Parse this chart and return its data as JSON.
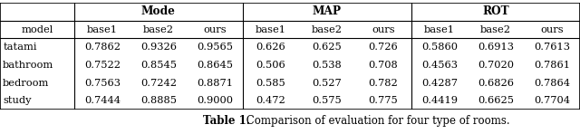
{
  "title_bold": "Table 1.",
  "title_normal": " Comparison of evaluation for four type of rooms.",
  "header_groups": [
    "Mode",
    "MAP",
    "ROT"
  ],
  "sub_headers": [
    "base1",
    "base2",
    "ours"
  ],
  "row_labels": [
    "tatami",
    "bathroom",
    "bedroom",
    "study"
  ],
  "data": {
    "tatami": {
      "Mode": [
        "0.7862",
        "0.9326",
        "0.9565"
      ],
      "MAP": [
        "0.626",
        "0.625",
        "0.726"
      ],
      "ROT": [
        "0.5860",
        "0.6913",
        "0.7613"
      ]
    },
    "bathroom": {
      "Mode": [
        "0.7522",
        "0.8545",
        "0.8645"
      ],
      "MAP": [
        "0.506",
        "0.538",
        "0.708"
      ],
      "ROT": [
        "0.4563",
        "0.7020",
        "0.7861"
      ]
    },
    "bedroom": {
      "Mode": [
        "0.7563",
        "0.7242",
        "0.8871"
      ],
      "MAP": [
        "0.585",
        "0.527",
        "0.782"
      ],
      "ROT": [
        "0.4287",
        "0.6826",
        "0.7864"
      ]
    },
    "study": {
      "Mode": [
        "0.7444",
        "0.8885",
        "0.9000"
      ],
      "MAP": [
        "0.472",
        "0.575",
        "0.775"
      ],
      "ROT": [
        "0.4419",
        "0.6625",
        "0.7704"
      ]
    }
  },
  "figsize": [
    6.4,
    1.48
  ],
  "dpi": 100,
  "background": "#ffffff",
  "font_size": 8.2,
  "title_font_size": 8.5
}
